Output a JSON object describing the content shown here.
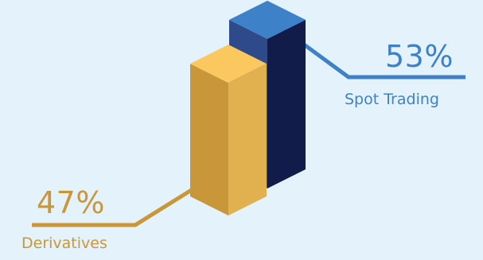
{
  "chart_data": {
    "type": "bar",
    "style": "isometric-3d",
    "title": "",
    "categories": [
      "Spot Trading",
      "Derivatives"
    ],
    "values": [
      53,
      47
    ],
    "value_labels": [
      "53%",
      "47%"
    ],
    "unit": "%",
    "colors": {
      "Spot Trading": "#3d82c8",
      "Derivatives": "#c9963a"
    },
    "legend": "none",
    "grid": false
  },
  "palette": {
    "background": "#e3f2fb",
    "spot_top": "#3d82c8",
    "spot_left": "#2f4a8a",
    "spot_right": "#121c4a",
    "spot_leader": "#3d82c8",
    "deriv_top": "#fbc85f",
    "deriv_left": "#c9963a",
    "deriv_right": "#e2b14f",
    "deriv_leader": "#c9963a"
  }
}
